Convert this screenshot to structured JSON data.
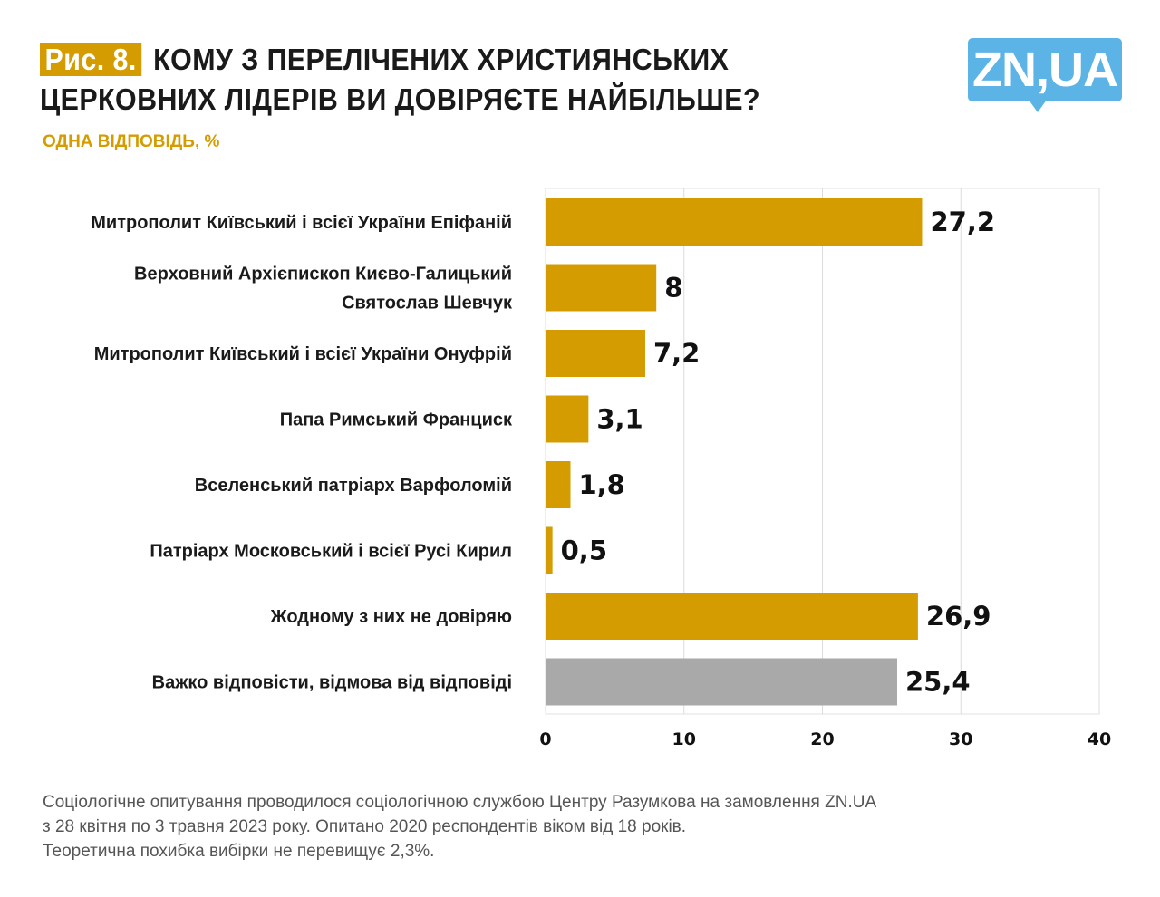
{
  "header": {
    "figure_label": "Рис. 8.",
    "title_line1": "КОМУ З ПЕРЕЛІЧЕНИХ ХРИСТИЯНСЬКИХ",
    "title_line2": "ЦЕРКОВНИХ  ЛІДЕРІВ ВИ ДОВІРЯЄТЕ НАЙБІЛЬШЕ?",
    "subtitle": "ОДНА ВІДПОВІДЬ, %",
    "logo": "ZN,UA"
  },
  "chart_data": {
    "type": "bar",
    "orientation": "horizontal",
    "title": "КОМУ З ПЕРЕЛІЧЕНИХ ХРИСТИЯНСЬКИХ ЦЕРКОВНИХ  ЛІДЕРІВ ВИ ДОВІРЯЄТЕ НАЙБІЛЬШЕ?",
    "subtitle": "ОДНА ВІДПОВІДЬ, %",
    "categories": [
      [
        "Митрополит Київський і всієї України Епіфаній"
      ],
      [
        "Верховний Архієпископ Києво-Галицький",
        "Святослав Шевчук"
      ],
      [
        "Митрополит Київський і всієї України Онуфрій"
      ],
      [
        "Папа Римський Франциск"
      ],
      [
        "Вселенський патріарх Варфоломій"
      ],
      [
        "Патріарх Московський і всієї Русі Кирил"
      ],
      [
        "Жодному з них не довіряю"
      ],
      [
        "Важко відповісти, відмова від відповіді"
      ]
    ],
    "values": [
      27.2,
      8,
      7.2,
      3.1,
      1.8,
      0.5,
      26.9,
      25.4
    ],
    "value_labels": [
      "27,2",
      "8",
      "7,2",
      "3,1",
      "1,8",
      "0,5",
      "26,9",
      "25,4"
    ],
    "colors": [
      "#d49c00",
      "#d49c00",
      "#d49c00",
      "#d49c00",
      "#d49c00",
      "#d49c00",
      "#d49c00",
      "#a9a9a9"
    ],
    "xlim": [
      0,
      40
    ],
    "xticks": [
      0,
      10,
      20,
      30,
      40
    ],
    "grid": true
  },
  "footnote": [
    "Соціологічне опитування проводилося соціологічною службою Центру Разумкова на замовлення ZN.UA",
    "з 28 квітня по 3 травня 2023 року. Опитано 2020 респондентів віком від 18 років.",
    "Теоретична похибка вибірки не перевищує 2,3%."
  ]
}
